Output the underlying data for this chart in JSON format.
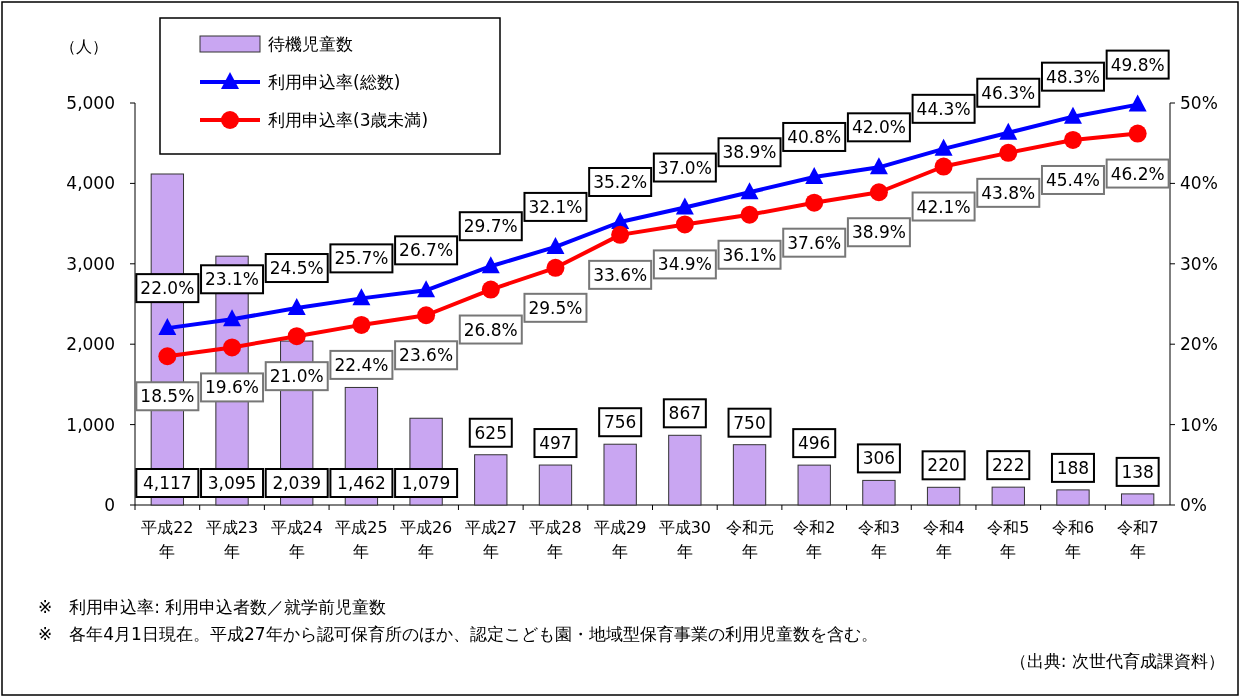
{
  "chart_data": {
    "type": "bar",
    "categories": [
      "平成22年",
      "平成23年",
      "平成24年",
      "平成25年",
      "平成26年",
      "平成27年",
      "平成28年",
      "平成29年",
      "平成30年",
      "令和元年",
      "令和2年",
      "令和3年",
      "令和4年",
      "令和5年",
      "令和6年",
      "令和7年"
    ],
    "series": [
      {
        "name": "待機児童数",
        "axis": "y",
        "color": "#c9a6f2",
        "values": [
          4117,
          3095,
          2039,
          1462,
          1079,
          625,
          497,
          756,
          867,
          750,
          496,
          306,
          220,
          222,
          188,
          138
        ],
        "value_labels": [
          "4,117",
          "3,095",
          "2,039",
          "1,462",
          "1,079",
          "625",
          "497",
          "756",
          "867",
          "750",
          "496",
          "306",
          "220",
          "222",
          "188",
          "138"
        ]
      },
      {
        "name": "利用申込率(総数)",
        "type": "line",
        "axis": "y2",
        "marker": "triangle",
        "color": "#0000ff",
        "values": [
          22.0,
          23.1,
          24.5,
          25.7,
          26.7,
          29.7,
          32.1,
          35.2,
          37.0,
          38.9,
          40.8,
          42.0,
          44.3,
          46.3,
          48.3,
          49.8
        ],
        "value_labels": [
          "22.0%",
          "23.1%",
          "24.5%",
          "25.7%",
          "26.7%",
          "29.7%",
          "32.1%",
          "35.2%",
          "37.0%",
          "38.9%",
          "40.8%",
          "42.0%",
          "44.3%",
          "46.3%",
          "48.3%",
          "49.8%"
        ]
      },
      {
        "name": "利用申込率(3歳未満)",
        "type": "line",
        "axis": "y2",
        "marker": "circle",
        "color": "#ff0000",
        "values": [
          18.5,
          19.6,
          21.0,
          22.4,
          23.6,
          26.8,
          29.5,
          33.6,
          34.9,
          36.1,
          37.6,
          38.9,
          42.1,
          43.8,
          45.4,
          46.2
        ],
        "value_labels": [
          "18.5%",
          "19.6%",
          "21.0%",
          "22.4%",
          "23.6%",
          "26.8%",
          "29.5%",
          "33.6%",
          "34.9%",
          "36.1%",
          "37.6%",
          "38.9%",
          "42.1%",
          "43.8%",
          "45.4%",
          "46.2%"
        ]
      }
    ],
    "ylabel": "（人）",
    "ylim": [
      0,
      5000
    ],
    "yticks": [
      0,
      {
        "value": 1000,
        "label": "1,000"
      },
      {
        "value": 2000,
        "label": "2,000"
      },
      {
        "value": 3000,
        "label": "3,000"
      },
      {
        "value": 4000,
        "label": "4,000"
      },
      {
        "value": 5000,
        "label": "5,000"
      }
    ],
    "y2lim": [
      0,
      50
    ],
    "y2ticks": [
      {
        "value": 0,
        "label": "0%"
      },
      {
        "value": 10,
        "label": "10%"
      },
      {
        "value": 20,
        "label": "20%"
      },
      {
        "value": 30,
        "label": "30%"
      },
      {
        "value": 40,
        "label": "40%"
      },
      {
        "value": 50,
        "label": "50%"
      }
    ],
    "legend": "top left",
    "annotations": [
      "※　利用申込率: 利用申込者数／就学前児童数",
      "※　各年4月1日現在。平成27年から認可保育所のほか、認定こども園・地域型保育事業の利用児童数を含む。",
      "（出典: 次世代育成課資料）"
    ]
  }
}
